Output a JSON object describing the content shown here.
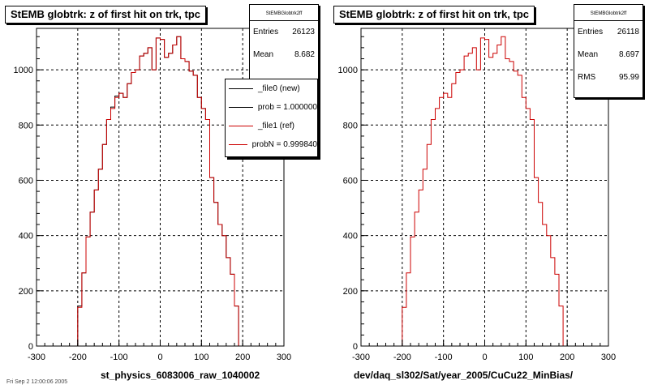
{
  "chart_data": [
    {
      "type": "histogram",
      "title": "StEMB globtrk: z of first hit on trk, tpc",
      "xlabel": "st_physics_6083006_raw_1040002",
      "ylabel": "",
      "xlim": [
        -300,
        300
      ],
      "ylim": [
        0,
        1150
      ],
      "x_ticks": [
        "-300",
        "-200",
        "-100",
        "0",
        "100",
        "200",
        "300"
      ],
      "y_ticks": [
        "0",
        "200",
        "400",
        "600",
        "800",
        "1000"
      ],
      "grid": true,
      "bin_edges": [
        -300,
        -290,
        -280,
        -270,
        -260,
        -250,
        -240,
        -230,
        -220,
        -210,
        -200,
        -190,
        -180,
        -170,
        -160,
        -150,
        -140,
        -130,
        -120,
        -110,
        -100,
        -90,
        -80,
        -70,
        -60,
        -50,
        -40,
        -30,
        -20,
        -10,
        0,
        10,
        20,
        30,
        40,
        50,
        60,
        70,
        80,
        90,
        100,
        110,
        120,
        130,
        140,
        150,
        160,
        170,
        180,
        190,
        200,
        210,
        220,
        230,
        240,
        250,
        260,
        270,
        280,
        290,
        300
      ],
      "series": [
        {
          "name": "_file0 (new)",
          "color": "#000000",
          "values": [
            0,
            0,
            0,
            0,
            0,
            0,
            0,
            0,
            0,
            0,
            145,
            265,
            395,
            485,
            565,
            640,
            730,
            820,
            865,
            905,
            915,
            900,
            950,
            990,
            1000,
            1050,
            1060,
            1080,
            1000,
            1115,
            1110,
            1045,
            1060,
            1090,
            1120,
            1040,
            1030,
            995,
            980,
            900,
            860,
            820,
            610,
            520,
            440,
            400,
            320,
            260,
            145,
            0,
            0,
            0,
            0,
            0,
            0,
            0,
            0,
            0,
            0,
            0
          ]
        },
        {
          "name": "_file1 (ref)",
          "color": "#cc0000",
          "values": [
            0,
            0,
            0,
            0,
            0,
            0,
            0,
            0,
            0,
            0,
            140,
            265,
            395,
            485,
            565,
            640,
            730,
            820,
            860,
            900,
            915,
            900,
            950,
            990,
            1000,
            1050,
            1060,
            1080,
            1000,
            1115,
            1110,
            1045,
            1060,
            1090,
            1120,
            1040,
            1030,
            995,
            980,
            900,
            860,
            820,
            610,
            520,
            440,
            400,
            320,
            260,
            145,
            0,
            0,
            0,
            0,
            0,
            0,
            0,
            0,
            0,
            0,
            0
          ]
        }
      ],
      "stats": {
        "name": "StEMBGlobtrk2ff",
        "entries": "26123",
        "mean": "8.682",
        "rms": ""
      },
      "legend": [
        {
          "label": "_file0 (new)",
          "color": "#000000"
        },
        {
          "label": "prob = 1.000000",
          "color": "#000000"
        },
        {
          "label": "_file1 (ref)",
          "color": "#cc0000"
        },
        {
          "label": "probN = 0.999840",
          "color": "#cc0000"
        }
      ]
    },
    {
      "type": "histogram",
      "title": "StEMB globtrk: z of first hit on trk, tpc",
      "xlabel": "dev/daq_sl302/Sat/year_2005/CuCu22_MinBias/",
      "ylabel": "",
      "xlim": [
        -300,
        300
      ],
      "ylim": [
        0,
        1150
      ],
      "x_ticks": [
        "-300",
        "-200",
        "-100",
        "0",
        "100",
        "200",
        "300"
      ],
      "y_ticks": [
        "0",
        "200",
        "400",
        "600",
        "800",
        "1000"
      ],
      "grid": true,
      "bin_edges": [
        -300,
        -290,
        -280,
        -270,
        -260,
        -250,
        -240,
        -230,
        -220,
        -210,
        -200,
        -190,
        -180,
        -170,
        -160,
        -150,
        -140,
        -130,
        -120,
        -110,
        -100,
        -90,
        -80,
        -70,
        -60,
        -50,
        -40,
        -30,
        -20,
        -10,
        0,
        10,
        20,
        30,
        40,
        50,
        60,
        70,
        80,
        90,
        100,
        110,
        120,
        130,
        140,
        150,
        160,
        170,
        180,
        190,
        200,
        210,
        220,
        230,
        240,
        250,
        260,
        270,
        280,
        290,
        300
      ],
      "series": [
        {
          "name": "",
          "color": "#cc0000",
          "values": [
            0,
            0,
            0,
            0,
            0,
            0,
            0,
            0,
            0,
            0,
            140,
            265,
            395,
            485,
            565,
            640,
            730,
            820,
            860,
            900,
            915,
            900,
            950,
            990,
            1000,
            1050,
            1060,
            1080,
            1000,
            1115,
            1110,
            1045,
            1060,
            1090,
            1120,
            1040,
            1030,
            995,
            980,
            900,
            860,
            820,
            610,
            520,
            440,
            400,
            320,
            260,
            145,
            0,
            0,
            0,
            0,
            0,
            0,
            0,
            0,
            0,
            0,
            0
          ]
        }
      ],
      "stats": {
        "name": "StEMBGlobtrk2ff",
        "entries": "26118",
        "mean": "8.697",
        "rms": "95.99"
      }
    }
  ],
  "labels": {
    "entries": "Entries",
    "mean": "Mean",
    "rms": "RMS"
  },
  "footer": "Fri Sep 2 12:00:06 2005"
}
